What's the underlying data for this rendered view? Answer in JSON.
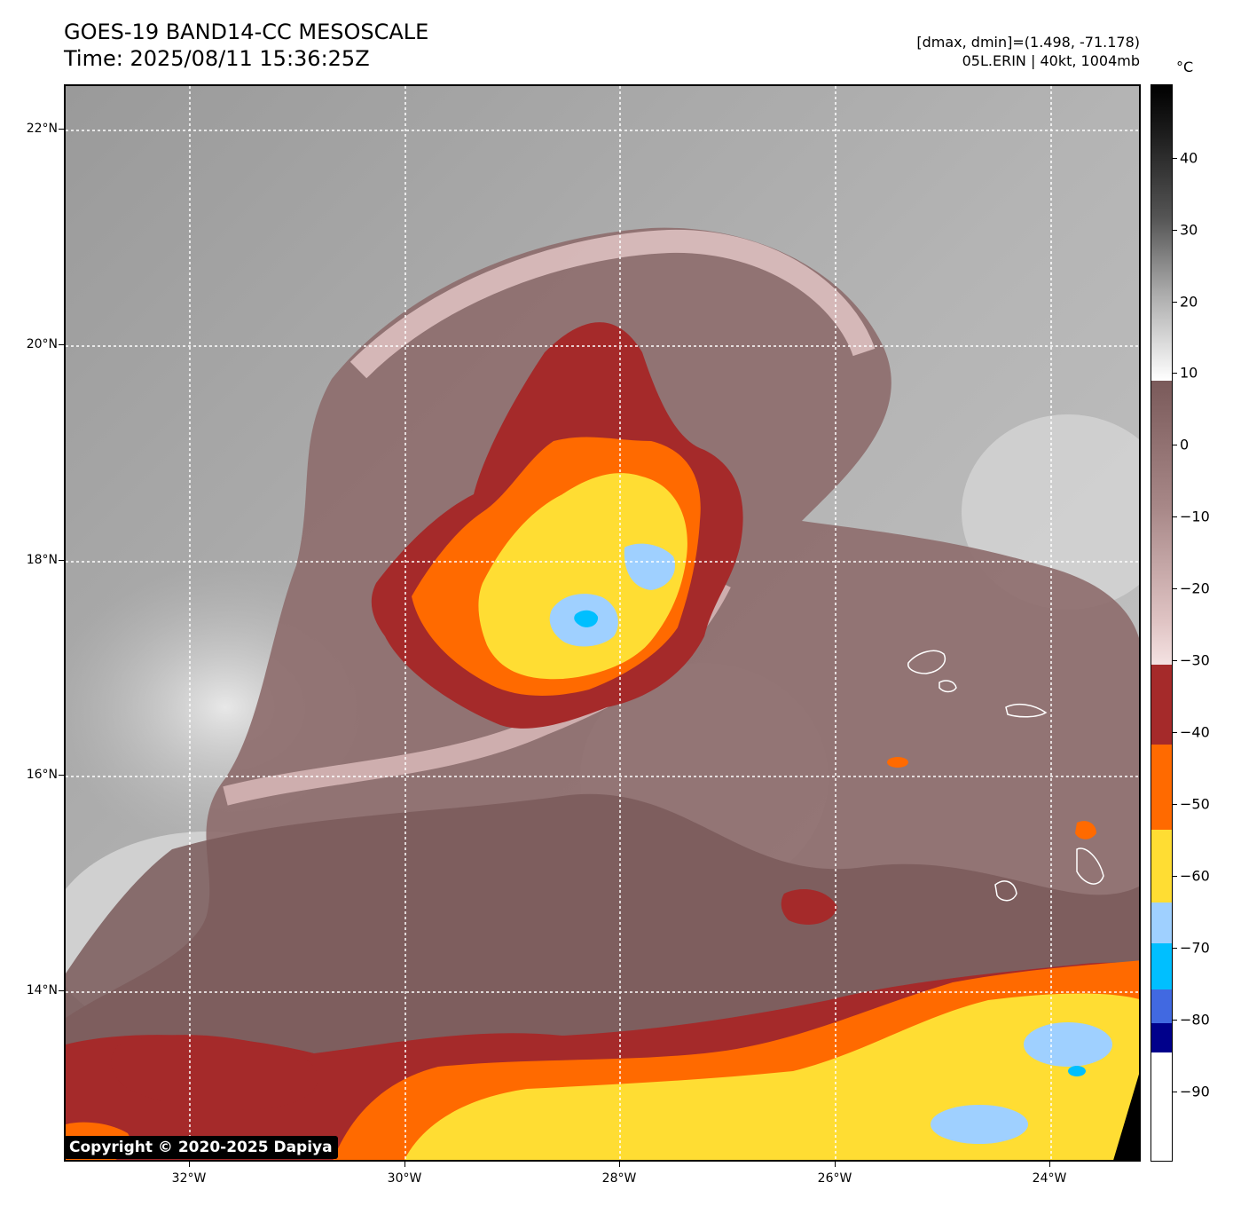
{
  "header": {
    "title_line1": "GOES-19 BAND14-CC MESOSCALE",
    "title_line2": "Time: 2025/08/11 15:36:25Z",
    "info_line1": "[dmax, dmin]=(1.498, -71.178)",
    "info_line2": "05L.ERIN | 40kt, 1004mb"
  },
  "map": {
    "lat_labels": [
      "22°N",
      "20°N",
      "18°N",
      "16°N",
      "14°N"
    ],
    "lon_labels": [
      "32°W",
      "30°W",
      "28°W",
      "26°W",
      "24°W"
    ],
    "copyright": "Copyright © 2020-2025 Dapiya"
  },
  "colorbar": {
    "unit": "°C",
    "tick_labels": [
      "40",
      "30",
      "20",
      "10",
      "0",
      "−10",
      "−20",
      "−30",
      "−40",
      "−50",
      "−60",
      "−70",
      "−80",
      "−90"
    ],
    "colors": {
      "black": "#000000",
      "gray_dark": "#555555",
      "gray_light": "#dddddd",
      "brown_dark": "#7a5a5a",
      "brown_light": "#e8c8c8",
      "darkred": "#a52a2a",
      "orange": "#ff6a00",
      "yellow": "#ffdd33",
      "lightblue": "#9fd0ff",
      "cyan": "#00bfff",
      "royalblue": "#4169e1",
      "navy": "#00008b",
      "white": "#ffffff"
    }
  },
  "storm": {
    "name": "05L.ERIN",
    "intensity": "40kt",
    "pressure": "1004mb"
  }
}
